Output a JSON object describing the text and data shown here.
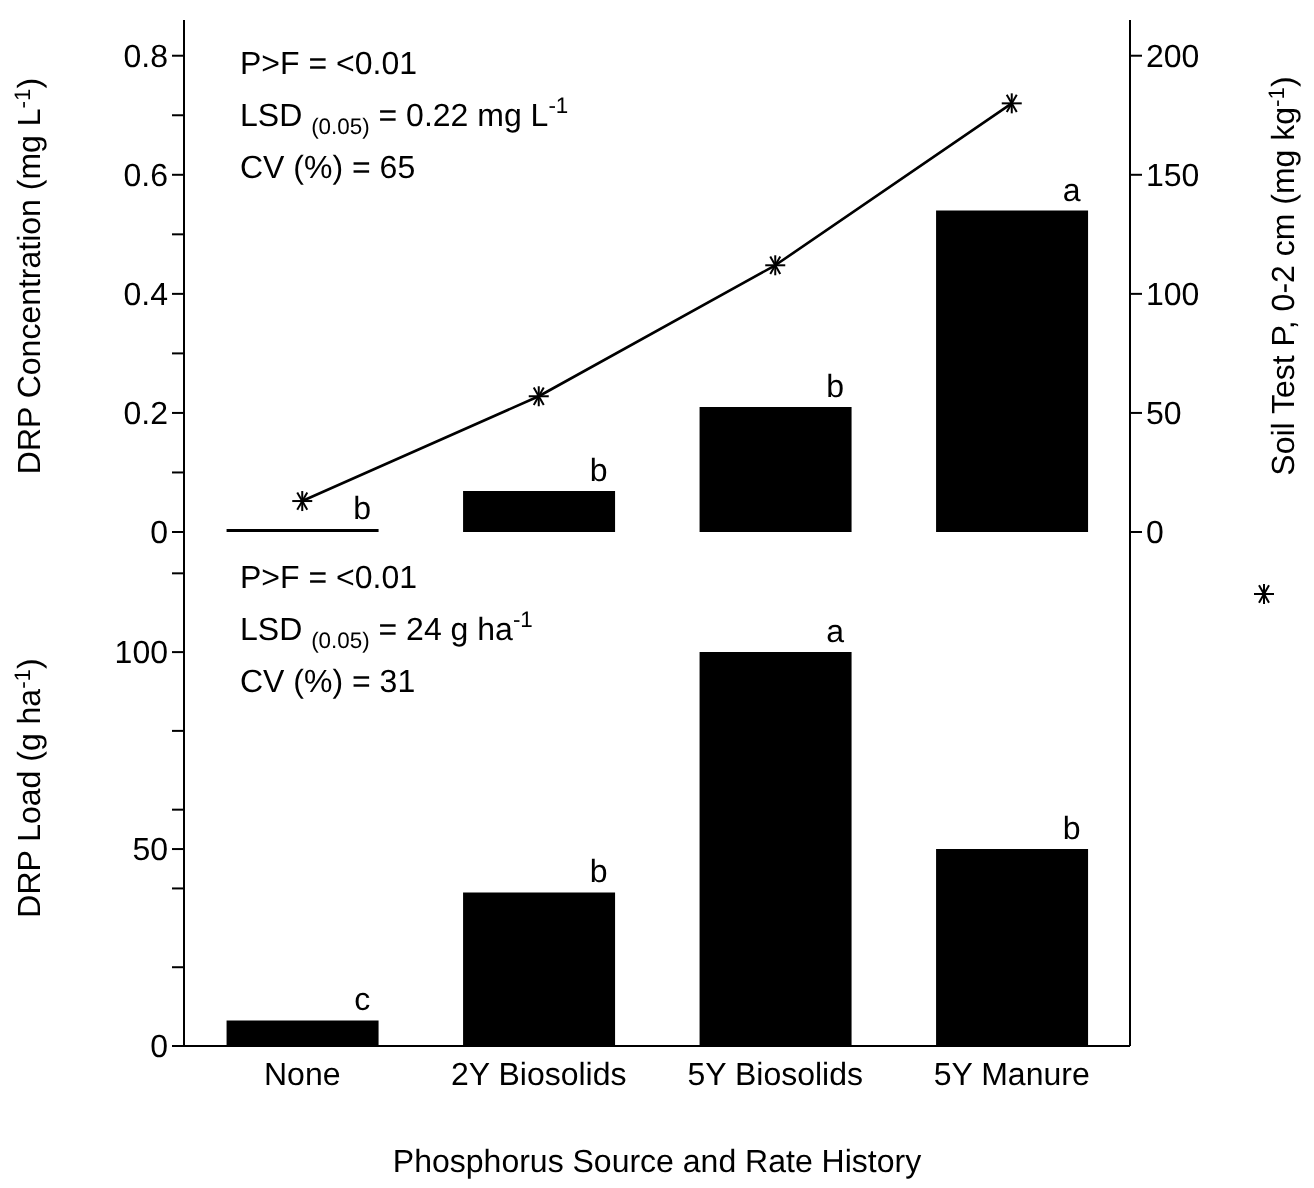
{
  "chart_data": [
    {
      "type": "bar",
      "categories": [
        "None",
        "2Y Biosolids",
        "5Y Biosolids",
        "5Y Manure"
      ],
      "ylabel": "DRP Concentration (mg L$^{-1}$)",
      "y2label": "Soil Test P, 0-2 cm (mg kg$^{-1}$)",
      "series": [
        {
          "color": "#000000",
          "values": [
            0.005,
            0.069,
            0.21,
            0.54
          ]
        },
        {
          "type": "line",
          "axis": "y2",
          "color": "#000000",
          "marker": "cross",
          "line_style": "solid",
          "values": [
            13,
            57,
            112,
            180
          ]
        }
      ],
      "ylim": [
        0,
        0.86
      ],
      "yticks": [
        0,
        {
          "value": 0.1,
          "label": null
        },
        0.2,
        {
          "value": 0.3,
          "label": null
        },
        0.4,
        {
          "value": 0.5,
          "label": null
        },
        0.6,
        {
          "value": 0.7,
          "label": null
        },
        0.8
      ],
      "y2lim": [
        0,
        215
      ],
      "y2ticks": [
        0,
        50,
        100,
        150,
        200
      ],
      "tick_labels": "y",
      "legend": false,
      "annotations": [
        "P>F = <0.01",
        "LSD $_{(0.05)}$ = 0.22 mg L$^{-1}$",
        "CV (%) = 65",
        {
          "text": "b",
          "x": "None",
          "y": 0.005
        },
        {
          "text": "b",
          "x": "2Y Biosolids",
          "y": 0.069
        },
        {
          "text": "b",
          "x": "5Y Biosolids",
          "y": 0.21
        },
        {
          "text": "a",
          "x": "5Y Manure",
          "y": 0.54
        }
      ]
    },
    {
      "type": "bar",
      "categories": [
        "None",
        "2Y Biosolids",
        "5Y Biosolids",
        "5Y Manure"
      ],
      "ylabel": "DRP Load (g ha$^{-1}$)",
      "xlabel": "Phosphorus Source and Rate History",
      "series": [
        {
          "color": "#000000",
          "values": [
            6.5,
            39,
            100,
            50
          ]
        }
      ],
      "ylim": [
        0,
        131
      ],
      "yticks": [
        0,
        {
          "value": 20,
          "label": null
        },
        {
          "value": 40,
          "label": null
        },
        50,
        {
          "value": 60,
          "label": null
        },
        {
          "value": 80,
          "label": null
        },
        100,
        {
          "value": 120,
          "label": null
        }
      ],
      "legend": false,
      "annotations": [
        "P>F = <0.01",
        "LSD $_{(0.05)}$ = 24 g ha$^{-1}$",
        "CV (%) = 31",
        {
          "text": "c",
          "x": "None",
          "y": 6.5
        },
        {
          "text": "b",
          "x": "2Y Biosolids",
          "y": 39
        },
        {
          "text": "a",
          "x": "5Y Biosolids",
          "y": 100
        },
        {
          "text": "b",
          "x": "5Y Manure",
          "y": 50
        }
      ]
    }
  ]
}
